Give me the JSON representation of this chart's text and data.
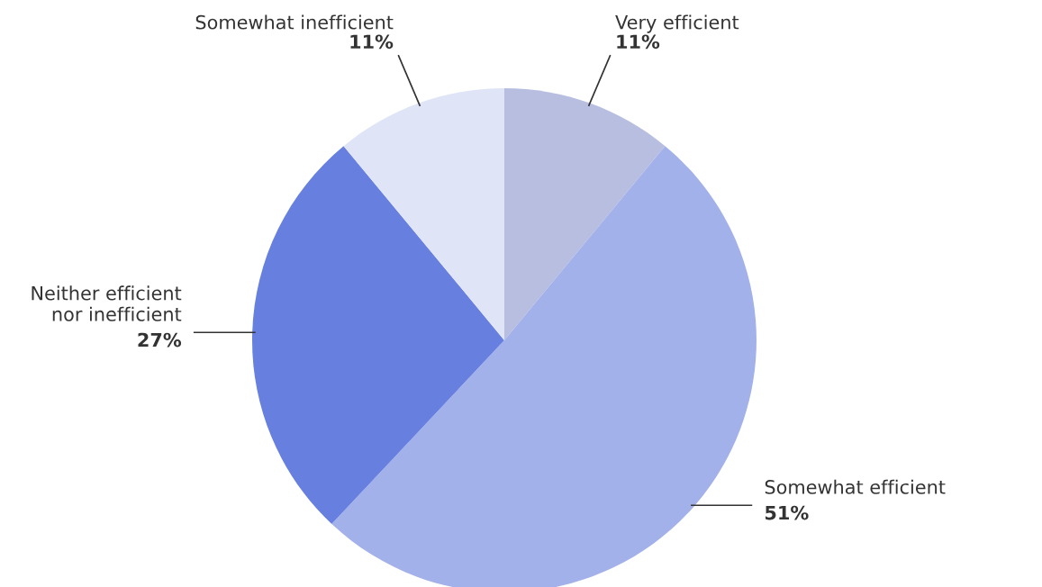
{
  "chart_data": {
    "type": "pie",
    "categories": [
      "Very efficient",
      "Somewhat efficient",
      "Neither efficient\nnor inefficient",
      "Somewhat inefficient"
    ],
    "values": [
      11,
      51,
      27,
      11
    ],
    "value_labels": [
      "11%",
      "51%",
      "27%",
      "11%"
    ],
    "colors": [
      "#b7bee0",
      "#a3b1eb",
      "#6780e0",
      "#e0e4f7"
    ],
    "legend": false
  }
}
